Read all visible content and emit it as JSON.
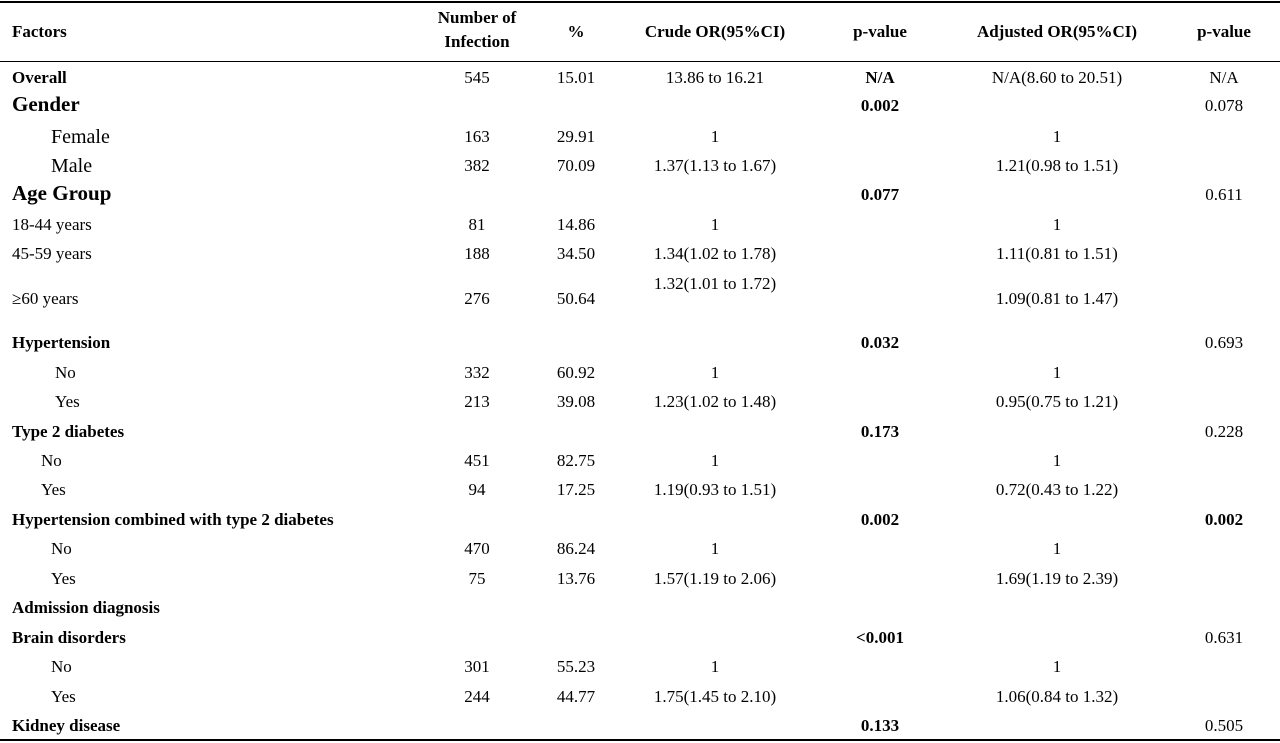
{
  "table": {
    "headers": {
      "factors": "Factors",
      "number_line1": "Number of",
      "number_line2": "Infection",
      "percent": "%",
      "crude_or": "Crude OR(95%CI)",
      "p_value_1": "p-value",
      "adjusted_or": "Adjusted OR(95%CI)",
      "p_value_2": "p-value"
    },
    "rows": [
      {
        "label": "Overall",
        "n": "545",
        "pct": "15.01",
        "crude": "13.86 to 16.21",
        "p1": "N/A",
        "adj": "N/A(8.60 to 20.51)",
        "p2": "N/A"
      },
      {
        "label": "Gender",
        "n": "",
        "pct": "",
        "crude": "",
        "p1": "0.002",
        "adj": "",
        "p2": "0.078"
      },
      {
        "label": "Female",
        "n": "163",
        "pct": "29.91",
        "crude": "1",
        "p1": "",
        "adj": "1",
        "p2": ""
      },
      {
        "label": "Male",
        "n": "382",
        "pct": "70.09",
        "crude": "1.37(1.13 to 1.67)",
        "p1": "",
        "adj": "1.21(0.98 to 1.51)",
        "p2": ""
      },
      {
        "label": "Age Group",
        "n": "",
        "pct": "",
        "crude": "",
        "p1": "0.077",
        "adj": "",
        "p2": "0.611"
      },
      {
        "label": "18-44 years",
        "n": "81",
        "pct": "14.86",
        "crude": "1",
        "p1": "",
        "adj": "1",
        "p2": ""
      },
      {
        "label": "45-59 years",
        "n": "188",
        "pct": "34.50",
        "crude": "1.34(1.02 to 1.78)",
        "p1": "",
        "adj": "1.11(0.81 to 1.51)",
        "p2": ""
      },
      {
        "label": "≥60 years",
        "n": "276",
        "pct": "50.64",
        "crude": "1.32(1.01 to 1.72)",
        "p1": "",
        "adj": "1.09(0.81 to 1.47)",
        "p2": ""
      },
      {
        "label": "Hypertension",
        "n": "",
        "pct": "",
        "crude": "",
        "p1": "0.032",
        "adj": "",
        "p2": "0.693"
      },
      {
        "label": "No",
        "n": "332",
        "pct": "60.92",
        "crude": "1",
        "p1": "",
        "adj": "1",
        "p2": ""
      },
      {
        "label": "Yes",
        "n": "213",
        "pct": "39.08",
        "crude": "1.23(1.02 to 1.48)",
        "p1": "",
        "adj": "0.95(0.75 to 1.21)",
        "p2": ""
      },
      {
        "label": "Type 2 diabetes",
        "n": "",
        "pct": "",
        "crude": "",
        "p1": "0.173",
        "adj": "",
        "p2": "0.228"
      },
      {
        "label": "No",
        "n": "451",
        "pct": "82.75",
        "crude": "1",
        "p1": "",
        "adj": "1",
        "p2": ""
      },
      {
        "label": "Yes",
        "n": "94",
        "pct": "17.25",
        "crude": "1.19(0.93 to 1.51)",
        "p1": "",
        "adj": "0.72(0.43 to 1.22)",
        "p2": ""
      },
      {
        "label": "Hypertension combined with type 2 diabetes",
        "n": "",
        "pct": "",
        "crude": "",
        "p1": "0.002",
        "adj": "",
        "p2": "0.002"
      },
      {
        "label": "No",
        "n": "470",
        "pct": "86.24",
        "crude": "1",
        "p1": "",
        "adj": "1",
        "p2": ""
      },
      {
        "label": "Yes",
        "n": "75",
        "pct": "13.76",
        "crude": "1.57(1.19 to 2.06)",
        "p1": "",
        "adj": "1.69(1.19 to 2.39)",
        "p2": ""
      },
      {
        "label": "Admission diagnosis",
        "n": "",
        "pct": "",
        "crude": "",
        "p1": "",
        "adj": "",
        "p2": ""
      },
      {
        "label": "Brain disorders",
        "n": "",
        "pct": "",
        "crude": "",
        "p1": "<0.001",
        "adj": "",
        "p2": "0.631"
      },
      {
        "label": "No",
        "n": "301",
        "pct": "55.23",
        "crude": "1",
        "p1": "",
        "adj": "1",
        "p2": ""
      },
      {
        "label": "Yes",
        "n": "244",
        "pct": "44.77",
        "crude": "1.75(1.45 to 2.10)",
        "p1": "",
        "adj": "1.06(0.84 to 1.32)",
        "p2": ""
      },
      {
        "label": "Kidney disease",
        "n": "",
        "pct": "",
        "crude": "",
        "p1": "0.133",
        "adj": "",
        "p2": "0.505"
      }
    ]
  }
}
